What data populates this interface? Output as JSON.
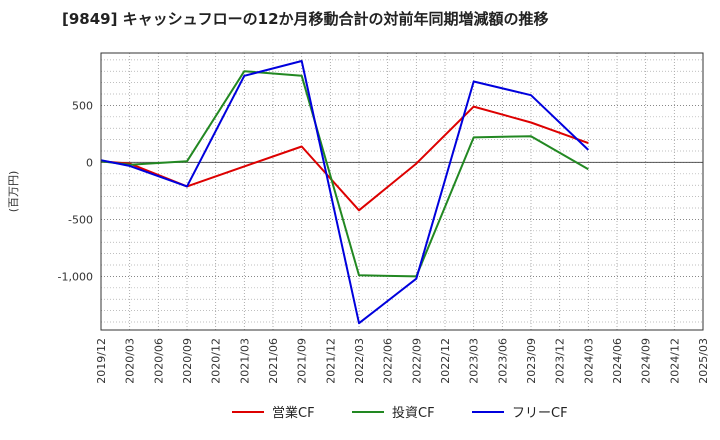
{
  "chart_data": {
    "type": "line",
    "title": "[9849]  キャッシュフローの12か月移動合計の対前年同期増減額の推移",
    "ylabel": "(百万円)",
    "xlabel": "",
    "x": [
      "2019/12",
      "2020/03",
      "2020/06",
      "2020/09",
      "2020/12",
      "2021/03",
      "2021/06",
      "2021/09",
      "2021/12",
      "2022/03",
      "2022/06",
      "2022/09",
      "2022/12",
      "2023/03",
      "2023/06",
      "2023/09",
      "2023/12",
      "2024/03",
      "2024/06",
      "2024/09",
      "2024/12",
      "2025/03"
    ],
    "ylim": [
      -1470,
      960
    ],
    "yticks": [
      500,
      0,
      -500,
      -1000
    ],
    "ytick_labels": [
      "500",
      "0",
      "-500",
      "-1,000"
    ],
    "grid": true,
    "legend_position": "bottom",
    "series": [
      {
        "name": "営業CF",
        "color": "#dd0000",
        "values": [
          10,
          -10,
          null,
          -210,
          null,
          null,
          null,
          140,
          null,
          -420,
          null,
          -10,
          null,
          490,
          null,
          350,
          null,
          170,
          null,
          null,
          null,
          null
        ]
      },
      {
        "name": "投資CF",
        "color": "#228822",
        "values": [
          10,
          -20,
          null,
          10,
          null,
          800,
          null,
          760,
          null,
          -990,
          null,
          -1000,
          null,
          220,
          null,
          230,
          null,
          -60,
          null,
          null,
          null,
          null
        ]
      },
      {
        "name": "フリーCF",
        "color": "#0000dd",
        "values": [
          20,
          -30,
          null,
          -210,
          null,
          760,
          null,
          890,
          null,
          -1410,
          null,
          -1020,
          null,
          710,
          null,
          590,
          null,
          110,
          null,
          null,
          null,
          null
        ]
      }
    ]
  }
}
